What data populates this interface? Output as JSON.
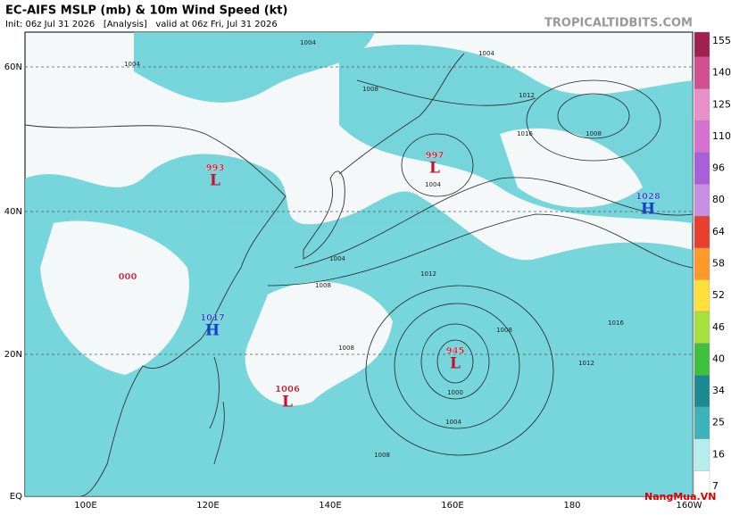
{
  "header": {
    "title": "EC-AIFS MSLP (mb) & 10m Wind Speed (kt)",
    "subtitle": "Init: 06z Jul 31 2026   [Analysis]   valid at 06z Fri, Jul 31 2026",
    "site": "TROPICALTIDBITS.COM"
  },
  "map": {
    "lat_labels": [
      "60N",
      "40N",
      "20N",
      "EQ"
    ],
    "lon_labels": [
      "100E",
      "120E",
      "140E",
      "160E",
      "180",
      "160W"
    ],
    "pressure_centers": [
      {
        "value": "993",
        "letter": "L"
      },
      {
        "value": "000",
        "letter": ""
      },
      {
        "value": "1017",
        "letter": "H"
      },
      {
        "value": "1006",
        "letter": "L"
      },
      {
        "value": "997",
        "letter": "L"
      },
      {
        "value": "945",
        "letter": "L"
      },
      {
        "value": "1028",
        "letter": "H"
      }
    ],
    "isobar_labels": [
      "1004",
      "1004",
      "1004",
      "1008",
      "1012",
      "1016",
      "1008",
      "1004",
      "1004",
      "1008",
      "1012",
      "1008",
      "1008",
      "1016",
      "1012",
      "1000",
      "1004",
      "1008"
    ]
  },
  "colorbar": {
    "ticks": [
      "7",
      "16",
      "25",
      "34",
      "40",
      "46",
      "52",
      "58",
      "64",
      "80",
      "96",
      "110",
      "125",
      "140",
      "155"
    ],
    "colors": [
      "#ffffff",
      "#b6eeee",
      "#3bb3b8",
      "#1d8a93",
      "#40c040",
      "#a8e040",
      "#ffe03a",
      "#ff9a2a",
      "#e84030",
      "#c890e0",
      "#a860d8",
      "#d870d0",
      "#e890c8",
      "#d05090",
      "#a02050"
    ]
  },
  "watermark": "NangMua.VN"
}
